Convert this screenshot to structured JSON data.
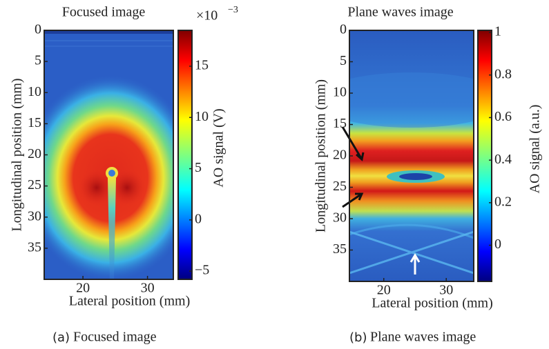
{
  "chart_data": [
    {
      "type": "heatmap",
      "title": "Focused image",
      "xlabel": "Lateral position (mm)",
      "ylabel": "Longitudinal position (mm)",
      "xlim": [
        14,
        34
      ],
      "xticks": [
        20,
        30
      ],
      "ylim": [
        0,
        40
      ],
      "yticks": [
        0,
        5,
        10,
        15,
        20,
        25,
        30,
        35
      ],
      "colormap": "jet",
      "colorbar_label": "AO signal (V)",
      "colorbar_multiplier": "×10",
      "colorbar_exponent": "−3",
      "clim": [
        -5.8,
        18.5
      ],
      "cticks": [
        {
          "value": -5,
          "label": "−5"
        },
        0,
        5,
        10,
        15
      ],
      "caption_label": "(a)",
      "caption": "Focused image"
    },
    {
      "type": "heatmap",
      "title": "Plane waves image",
      "xlabel": "Lateral position (mm)",
      "ylabel": "Longitudinal position (mm)",
      "xlim": [
        14.5,
        34.4
      ],
      "xticks": [
        20,
        30
      ],
      "ylim": [
        0,
        40
      ],
      "yticks": [
        0,
        5,
        10,
        15,
        20,
        25,
        30,
        35
      ],
      "colormap": "jet",
      "colorbar_label": "AO signal (a.u.)",
      "clim": [
        -0.17,
        1.01
      ],
      "cticks": [
        0,
        0.2,
        0.4,
        0.6,
        0.8,
        1
      ],
      "caption_label": "(b)",
      "caption": "Plane waves image"
    }
  ]
}
